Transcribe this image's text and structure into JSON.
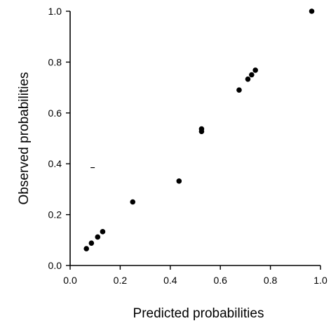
{
  "chart_data": {
    "type": "scatter",
    "xlabel": "Predicted probabilities",
    "ylabel": "Observed probabilities",
    "xlim": [
      0.0,
      1.0
    ],
    "ylim": [
      0.0,
      1.0
    ],
    "xticks": [
      "0.0",
      "0.2",
      "0.4",
      "0.6",
      "0.8",
      "1.0"
    ],
    "yticks": [
      "0.0",
      "0.2",
      "0.4",
      "0.6",
      "0.8",
      "1.0"
    ],
    "grid": false,
    "series": [
      {
        "points": [
          {
            "x": 0.065,
            "y": 0.066
          },
          {
            "x": 0.085,
            "y": 0.088
          },
          {
            "x": 0.11,
            "y": 0.112
          },
          {
            "x": 0.13,
            "y": 0.133
          },
          {
            "x": 0.25,
            "y": 0.25
          },
          {
            "x": 0.435,
            "y": 0.332
          },
          {
            "x": 0.525,
            "y": 0.527
          },
          {
            "x": 0.525,
            "y": 0.537
          },
          {
            "x": 0.675,
            "y": 0.69
          },
          {
            "x": 0.71,
            "y": 0.733
          },
          {
            "x": 0.725,
            "y": 0.75
          },
          {
            "x": 0.74,
            "y": 0.768
          },
          {
            "x": 0.965,
            "y": 1.0
          }
        ],
        "color": "#000000"
      }
    ],
    "annotations": [
      {
        "type": "dash",
        "x": 0.09,
        "y": 0.385
      }
    ]
  }
}
